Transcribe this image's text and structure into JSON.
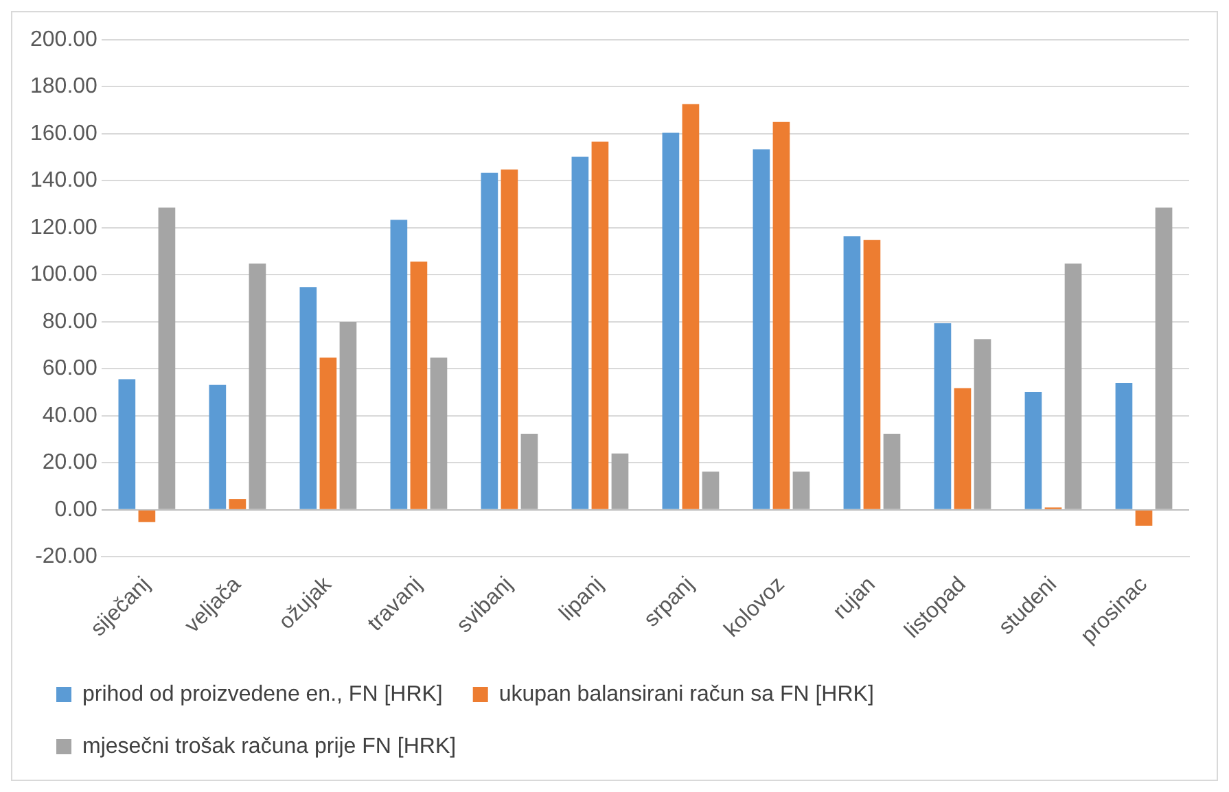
{
  "chart_data": {
    "type": "bar",
    "categories": [
      "siječanj",
      "veljača",
      "ožujak",
      "travanj",
      "svibanj",
      "lipanj",
      "srpanj",
      "kolovoz",
      "rujan",
      "listopad",
      "studeni",
      "prosinac"
    ],
    "series": [
      {
        "name": "prihod od proizvedene en., FN [HRK]",
        "color": "#5b9bd5",
        "values": [
          55.6,
          53.2,
          94.8,
          123.4,
          143.4,
          150.2,
          160.4,
          153.4,
          116.4,
          79.4,
          50.2,
          54
        ]
      },
      {
        "name": "ukupan balansirani račun sa FN [HRK]",
        "color": "#ed7d31",
        "values": [
          -5.2,
          4.6,
          64.8,
          105.6,
          144.8,
          156.6,
          172.6,
          165,
          114.8,
          51.8,
          1,
          -6.8
        ]
      },
      {
        "name": "mjesečni trošak računa prije FN [HRK]",
        "color": "#a5a5a5",
        "values": [
          128.6,
          104.8,
          80,
          64.8,
          32.4,
          24,
          16.2,
          16.2,
          32.4,
          72.6,
          104.8,
          128.6
        ]
      }
    ],
    "ylim": [
      -20,
      200
    ],
    "yticks": [
      {
        "value": -20,
        "label": "-20.00"
      },
      {
        "value": 0,
        "label": "0.00"
      },
      {
        "value": 20,
        "label": "20.00"
      },
      {
        "value": 40,
        "label": "40.00"
      },
      {
        "value": 60,
        "label": "60.00"
      },
      {
        "value": 80,
        "label": "80.00"
      },
      {
        "value": 100,
        "label": "100.00"
      },
      {
        "value": 120,
        "label": "120.00"
      },
      {
        "value": 140,
        "label": "140.00"
      },
      {
        "value": 160,
        "label": "160.00"
      },
      {
        "value": 180,
        "label": "180.00"
      },
      {
        "value": 200,
        "label": "200.00"
      }
    ],
    "grid": "y",
    "legend": "bottom"
  }
}
